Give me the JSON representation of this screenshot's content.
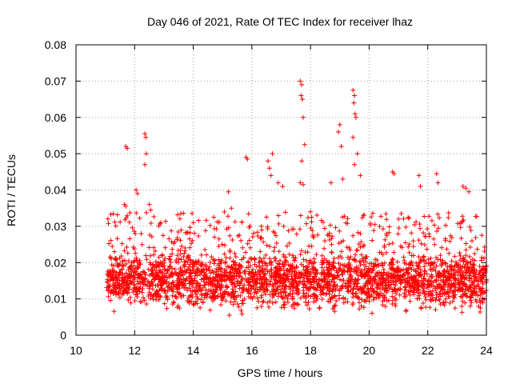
{
  "chart_data": {
    "type": "scatter",
    "title": "Day 046 of 2021, Rate Of TEC Index for receiver lhaz",
    "xlabel": "GPS time / hours",
    "ylabel": "ROTI / TECUs",
    "xlim": [
      10,
      24
    ],
    "ylim": [
      0,
      0.08
    ],
    "grid": true,
    "marker": "+",
    "colors": {
      "series": "#ff0000",
      "grid": "#a0a0a0",
      "axis": "#000000"
    },
    "x_ticks": [
      10,
      12,
      14,
      16,
      18,
      20,
      22,
      24
    ],
    "x_tick_labels": [
      "10",
      "12",
      "14",
      "16",
      "18",
      "20",
      "22",
      "24"
    ],
    "y_ticks": [
      0,
      0.01,
      0.02,
      0.03,
      0.04,
      0.05,
      0.06,
      0.07,
      0.08
    ],
    "y_tick_labels": [
      "0",
      "0.01",
      "0.02",
      "0.03",
      "0.04",
      "0.05",
      "0.06",
      "0.07",
      "0.08"
    ],
    "series": [
      {
        "name": "ROTI",
        "x_range": [
          11.05,
          24.0
        ],
        "typical_range": [
          0.006,
          0.025
        ],
        "outliers": [
          {
            "x": 11.7,
            "y": 0.052
          },
          {
            "x": 11.75,
            "y": 0.0515
          },
          {
            "x": 11.65,
            "y": 0.036
          },
          {
            "x": 11.7,
            "y": 0.0355
          },
          {
            "x": 12.05,
            "y": 0.04
          },
          {
            "x": 12.1,
            "y": 0.039
          },
          {
            "x": 12.35,
            "y": 0.0555
          },
          {
            "x": 12.38,
            "y": 0.0545
          },
          {
            "x": 12.4,
            "y": 0.05
          },
          {
            "x": 12.35,
            "y": 0.047
          },
          {
            "x": 12.5,
            "y": 0.036
          },
          {
            "x": 12.55,
            "y": 0.0345
          },
          {
            "x": 14.0,
            "y": 0.031
          },
          {
            "x": 14.7,
            "y": 0.0325
          },
          {
            "x": 15.2,
            "y": 0.0395
          },
          {
            "x": 15.3,
            "y": 0.035
          },
          {
            "x": 15.8,
            "y": 0.049
          },
          {
            "x": 15.85,
            "y": 0.0485
          },
          {
            "x": 16.55,
            "y": 0.048
          },
          {
            "x": 16.6,
            "y": 0.046
          },
          {
            "x": 16.7,
            "y": 0.05
          },
          {
            "x": 16.65,
            "y": 0.044
          },
          {
            "x": 16.9,
            "y": 0.042
          },
          {
            "x": 17.05,
            "y": 0.041
          },
          {
            "x": 17.65,
            "y": 0.07
          },
          {
            "x": 17.7,
            "y": 0.069
          },
          {
            "x": 17.68,
            "y": 0.066
          },
          {
            "x": 17.72,
            "y": 0.065
          },
          {
            "x": 17.75,
            "y": 0.06
          },
          {
            "x": 17.8,
            "y": 0.0525
          },
          {
            "x": 17.7,
            "y": 0.048
          },
          {
            "x": 17.65,
            "y": 0.042
          },
          {
            "x": 17.75,
            "y": 0.0415
          },
          {
            "x": 18.0,
            "y": 0.034
          },
          {
            "x": 18.7,
            "y": 0.042
          },
          {
            "x": 18.95,
            "y": 0.056
          },
          {
            "x": 19.0,
            "y": 0.058
          },
          {
            "x": 19.05,
            "y": 0.052
          },
          {
            "x": 19.1,
            "y": 0.043
          },
          {
            "x": 19.45,
            "y": 0.0675
          },
          {
            "x": 19.5,
            "y": 0.066
          },
          {
            "x": 19.48,
            "y": 0.064
          },
          {
            "x": 19.52,
            "y": 0.061
          },
          {
            "x": 19.55,
            "y": 0.06
          },
          {
            "x": 19.45,
            "y": 0.0545
          },
          {
            "x": 19.6,
            "y": 0.05
          },
          {
            "x": 19.5,
            "y": 0.047
          },
          {
            "x": 19.7,
            "y": 0.044
          },
          {
            "x": 20.8,
            "y": 0.045
          },
          {
            "x": 20.85,
            "y": 0.0445
          },
          {
            "x": 21.7,
            "y": 0.044
          },
          {
            "x": 21.75,
            "y": 0.041
          },
          {
            "x": 22.3,
            "y": 0.0445
          },
          {
            "x": 22.35,
            "y": 0.042
          },
          {
            "x": 23.2,
            "y": 0.041
          },
          {
            "x": 23.3,
            "y": 0.0405
          },
          {
            "x": 23.4,
            "y": 0.0395
          }
        ]
      }
    ]
  }
}
